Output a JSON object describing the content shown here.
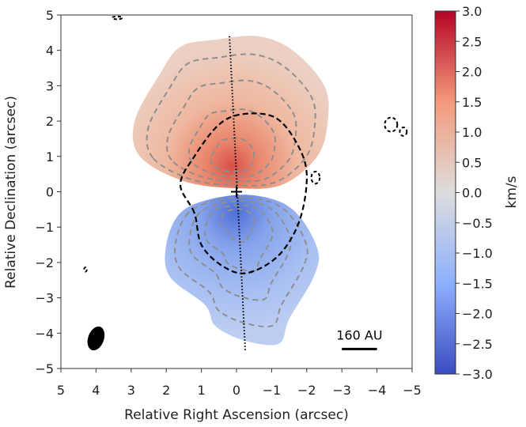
{
  "chart_data": {
    "type": "heatmap",
    "title": "",
    "xlabel": "Relative Right Ascension (arcsec)",
    "ylabel": "Relative Declination (arcsec)",
    "xlim": [
      5,
      -5
    ],
    "ylim": [
      -5,
      5
    ],
    "xticks": [
      "5",
      "4",
      "3",
      "2",
      "1",
      "0",
      "−1",
      "−2",
      "−3",
      "−4",
      "−5"
    ],
    "yticks": [
      "5",
      "4",
      "3",
      "2",
      "1",
      "0",
      "−1",
      "−2",
      "−3",
      "−4",
      "−5"
    ],
    "colorbar": {
      "label": "km/s",
      "range": [
        -3.0,
        3.0
      ],
      "ticks": [
        "3.0",
        "2.5",
        "2.0",
        "1.5",
        "1.0",
        "0.5",
        "0.0",
        "−0.5",
        "−1.0",
        "−1.5",
        "−2.0",
        "−2.5",
        "−3.0"
      ],
      "colormap": "coolwarm",
      "colors": [
        "#3b4cc0",
        "#8db0fe",
        "#dddddd",
        "#f49a7b",
        "#b40426"
      ]
    },
    "lobes": [
      {
        "name": "redshifted",
        "velocity": 1.0,
        "peak_velocity": 2.0,
        "peak": [
          0.1,
          0.7
        ],
        "outline": [
          [
            2.75,
            1.0
          ],
          [
            2.9,
            2.0
          ],
          [
            2.2,
            3.3
          ],
          [
            1.6,
            4.1
          ],
          [
            0.6,
            4.3
          ],
          [
            -0.6,
            4.4
          ],
          [
            -1.6,
            4.0
          ],
          [
            -2.5,
            3.0
          ],
          [
            -2.6,
            2.0
          ],
          [
            -2.3,
            1.0
          ],
          [
            -1.3,
            0.2
          ],
          [
            0,
            0.1
          ],
          [
            1.5,
            0.3
          ]
        ]
      },
      {
        "name": "blueshifted",
        "velocity": -1.2,
        "peak_velocity": -1.8,
        "peak": [
          0.0,
          -0.6
        ],
        "outline": [
          [
            1.6,
            -0.6
          ],
          [
            2.0,
            -1.5
          ],
          [
            1.9,
            -2.4
          ],
          [
            0.9,
            -3.2
          ],
          [
            0.6,
            -3.8
          ],
          [
            -0.2,
            -4.2
          ],
          [
            -1.2,
            -4.3
          ],
          [
            -1.5,
            -3.6
          ],
          [
            -2.2,
            -2.4
          ],
          [
            -2.3,
            -1.6
          ],
          [
            -1.6,
            -0.5
          ],
          [
            -0.5,
            -0.1
          ],
          [
            0.7,
            -0.2
          ]
        ]
      }
    ],
    "outflow_axis": [
      [
        0.2,
        4.4
      ],
      [
        -0.25,
        -4.5
      ]
    ],
    "source_position": [
      0,
      0
    ],
    "beam": {
      "center": [
        4.0,
        -4.15
      ],
      "major": 0.7,
      "minor": 0.45,
      "pa_deg": 20
    },
    "dark_contour": [
      [
        1.2,
        -0.6
      ],
      [
        1.6,
        0.2
      ],
      [
        1.2,
        1.0
      ],
      [
        0.5,
        1.9
      ],
      [
        -0.2,
        2.2
      ],
      [
        -1.1,
        2.1
      ],
      [
        -1.7,
        1.4
      ],
      [
        -2.0,
        0.5
      ],
      [
        -1.8,
        -0.8
      ],
      [
        -1.2,
        -1.8
      ],
      [
        -0.3,
        -2.3
      ],
      [
        0.4,
        -2.1
      ],
      [
        1.0,
        -1.5
      ]
    ],
    "scale_bar": {
      "label": "160 AU",
      "from": [
        -3.0,
        -4.45
      ],
      "to": [
        -4.0,
        -4.45
      ]
    }
  }
}
